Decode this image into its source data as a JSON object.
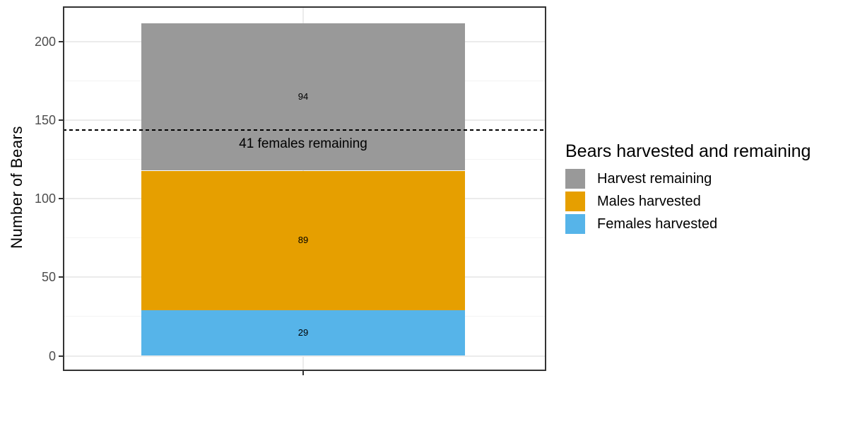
{
  "chart_data": {
    "type": "bar",
    "stacked": true,
    "orientation": "vertical",
    "title": "",
    "xlabel": "",
    "ylabel": "Number of Bears",
    "categories": [
      ""
    ],
    "series": [
      {
        "name": "Females harvested",
        "values": [
          29
        ],
        "color": "#56B4E9",
        "label": "29"
      },
      {
        "name": "Males harvested",
        "values": [
          89
        ],
        "color": "#E69F00",
        "label": "89"
      },
      {
        "name": "Harvest remaining",
        "values": [
          94
        ],
        "color": "#999999",
        "label": "94"
      }
    ],
    "bar_total": 212,
    "yticks": [
      0,
      50,
      100,
      150,
      200
    ],
    "yticks_minor": [
      25,
      75,
      125,
      175
    ],
    "ylim": [
      0,
      212
    ],
    "grid": true,
    "reference_line": {
      "value": 144,
      "style": "dashed",
      "color": "#000000",
      "label": "41 females remaining"
    },
    "legend": {
      "title": "Bears harvested and remaining",
      "position": "right",
      "items": [
        {
          "label": "Harvest remaining",
          "color": "#999999"
        },
        {
          "label": "Males harvested",
          "color": "#E69F00"
        },
        {
          "label": "Females harvested",
          "color": "#56B4E9"
        }
      ]
    }
  }
}
